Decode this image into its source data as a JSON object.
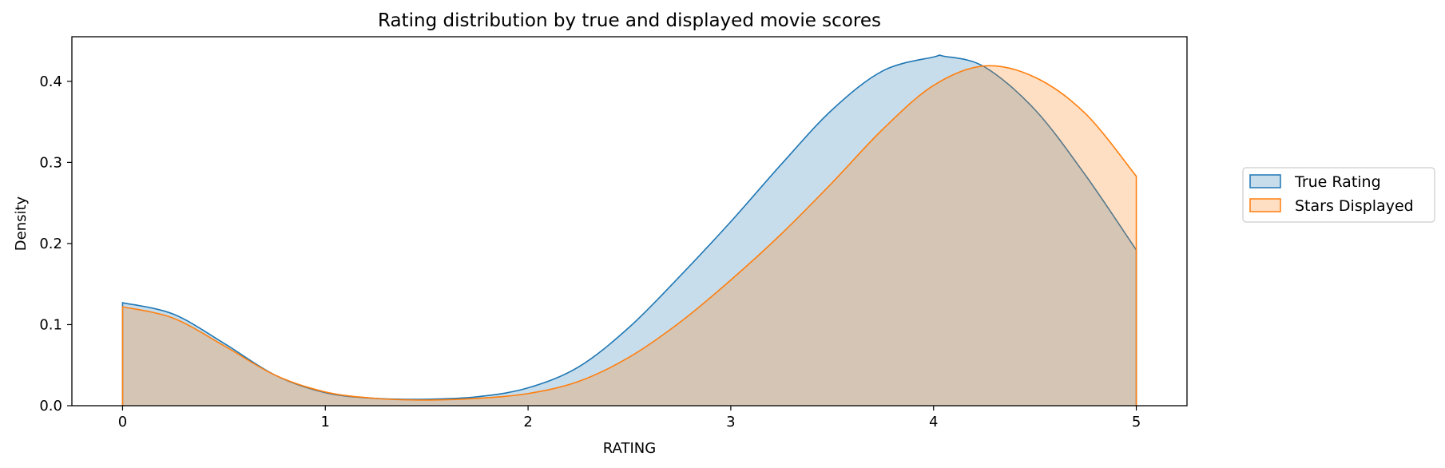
{
  "chart_data": {
    "type": "area",
    "title": "Rating distribution by true and displayed movie scores",
    "xlabel": "RATING",
    "ylabel": "Density",
    "xlim": [
      -0.25,
      5.25
    ],
    "ylim": [
      0,
      0.455
    ],
    "xticks": [
      0,
      1,
      2,
      3,
      4,
      5
    ],
    "yticks": [
      0.0,
      0.1,
      0.2,
      0.3,
      0.4
    ],
    "ytick_labels": [
      "0.0",
      "0.1",
      "0.2",
      "0.3",
      "0.4"
    ],
    "grid": false,
    "legend_position": "right",
    "series": [
      {
        "name": "True Rating",
        "line_color": "#1f77b4",
        "fill_color": "#1f77b4",
        "fill_opacity": 0.25,
        "x": [
          0,
          0.25,
          0.5,
          0.75,
          1.0,
          1.25,
          1.5,
          1.75,
          2.0,
          2.25,
          2.5,
          2.75,
          3.0,
          3.25,
          3.5,
          3.75,
          4.0,
          4.05,
          4.25,
          4.5,
          4.75,
          5.0
        ],
        "y": [
          0.127,
          0.113,
          0.077,
          0.038,
          0.016,
          0.009,
          0.008,
          0.011,
          0.022,
          0.048,
          0.097,
          0.16,
          0.227,
          0.298,
          0.365,
          0.413,
          0.43,
          0.431,
          0.418,
          0.365,
          0.284,
          0.192
        ]
      },
      {
        "name": "Stars Displayed",
        "line_color": "#ff7f0e",
        "fill_color": "#ff7f0e",
        "fill_opacity": 0.25,
        "x": [
          0,
          0.25,
          0.5,
          0.75,
          1.0,
          1.25,
          1.5,
          1.75,
          2.0,
          2.25,
          2.5,
          2.75,
          3.0,
          3.25,
          3.5,
          3.75,
          4.0,
          4.25,
          4.5,
          4.75,
          5.0
        ],
        "y": [
          0.122,
          0.108,
          0.074,
          0.038,
          0.017,
          0.009,
          0.007,
          0.009,
          0.015,
          0.03,
          0.06,
          0.103,
          0.155,
          0.212,
          0.275,
          0.341,
          0.395,
          0.419,
          0.405,
          0.36,
          0.283
        ]
      }
    ]
  }
}
